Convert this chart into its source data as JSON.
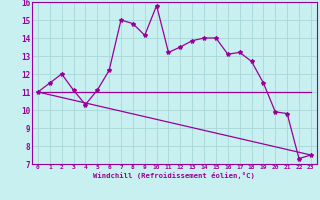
{
  "xlabel": "Windchill (Refroidissement éolien,°C)",
  "ylabel": "",
  "bg_color": "#c8f0f0",
  "grid_color": "#a8d8d8",
  "line_color": "#990099",
  "xlim": [
    -0.5,
    23.5
  ],
  "ylim": [
    7,
    16
  ],
  "xticks": [
    0,
    1,
    2,
    3,
    4,
    5,
    6,
    7,
    8,
    9,
    10,
    11,
    12,
    13,
    14,
    15,
    16,
    17,
    18,
    19,
    20,
    21,
    22,
    23
  ],
  "yticks": [
    7,
    8,
    9,
    10,
    11,
    12,
    13,
    14,
    15,
    16
  ],
  "line1_x": [
    0,
    1,
    2,
    3,
    4,
    5,
    6,
    7,
    8,
    9,
    10,
    11,
    12,
    13,
    14,
    15,
    16,
    17,
    18,
    19,
    20,
    21,
    22,
    23
  ],
  "line1_y": [
    11,
    11.5,
    12,
    11.1,
    10.3,
    11.1,
    12.2,
    15,
    14.8,
    14.15,
    15.8,
    13.2,
    13.5,
    13.85,
    14.0,
    14.0,
    13.1,
    13.2,
    12.7,
    11.5,
    9.9,
    9.8,
    7.3,
    7.5
  ],
  "line2_x": [
    0,
    23
  ],
  "line2_y": [
    11,
    11
  ],
  "line3_x": [
    0,
    23
  ],
  "line3_y": [
    11,
    7.5
  ],
  "marker": "*",
  "markersize": 3,
  "linewidth": 0.9
}
